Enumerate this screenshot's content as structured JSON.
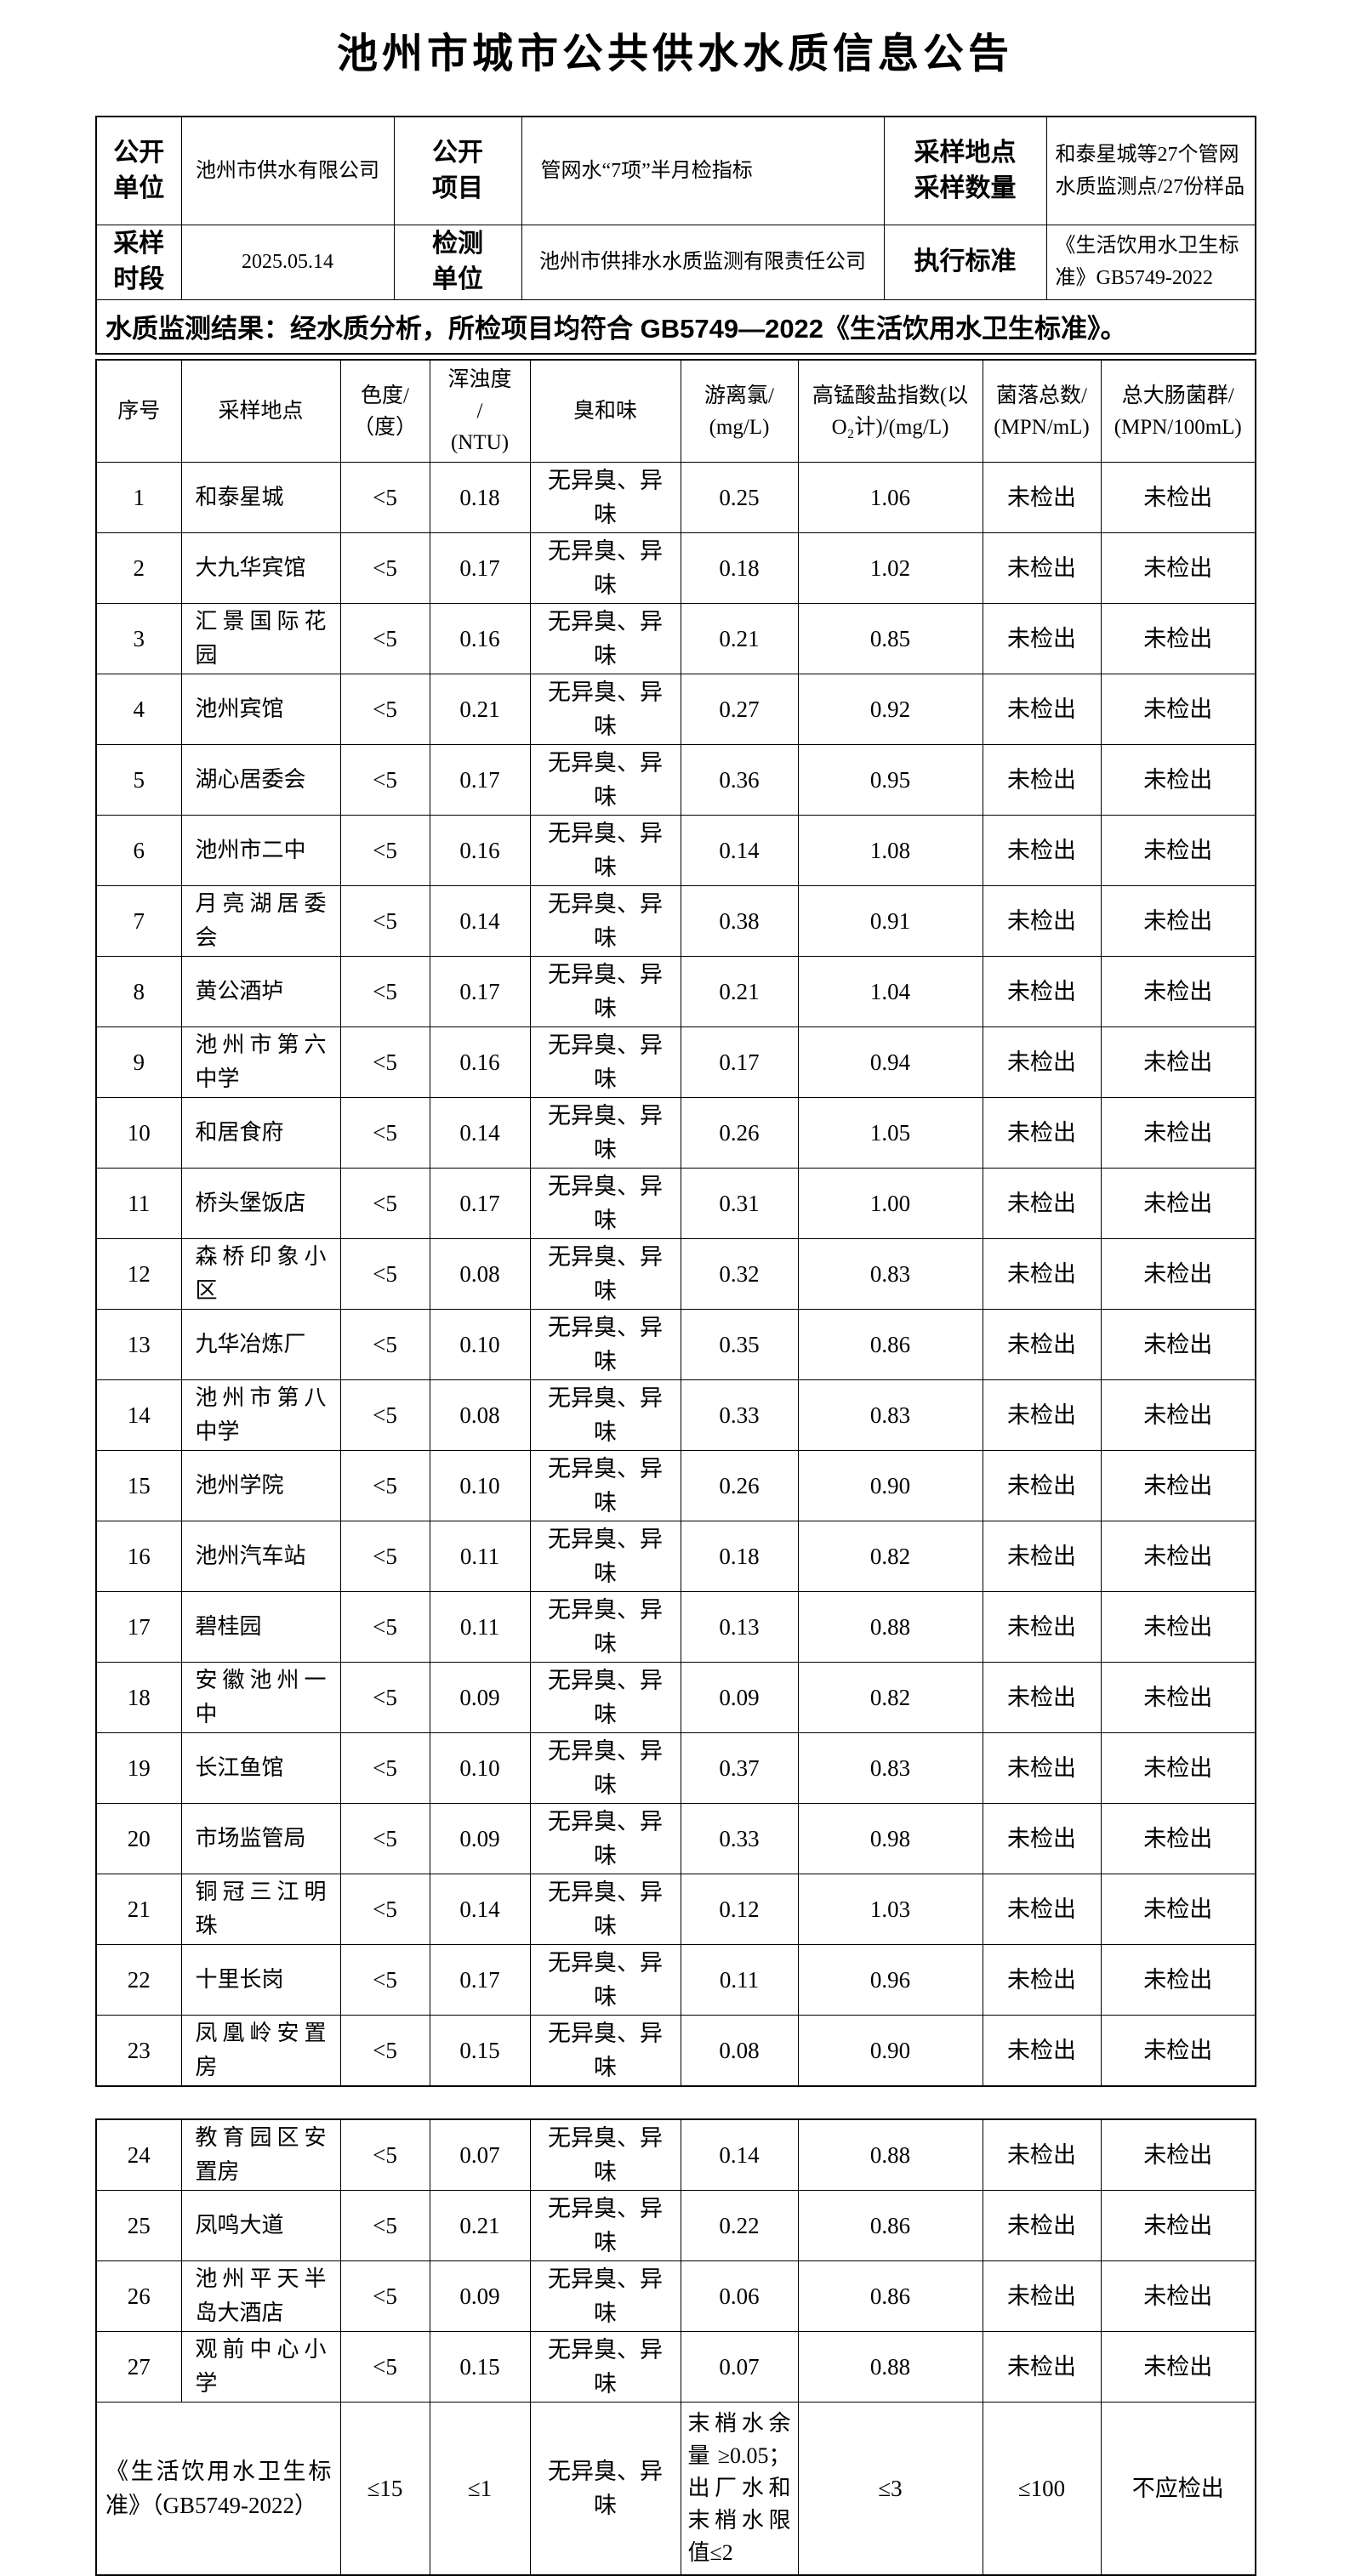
{
  "title": "池州市城市公共供水水质信息公告",
  "info": {
    "open_unit": {
      "label": "公开\n单位",
      "value": "池州市供水有限公司"
    },
    "open_item": {
      "label": "公开\n项目",
      "value": "管网水“7项”半月检指标"
    },
    "sample_site": {
      "label": "采样地点\n采样数量",
      "value": "和泰星城等27个管网水质监测点/27份样品"
    },
    "sample_time": {
      "label": "采样\n时段",
      "value": "2025.05.14"
    },
    "test_unit": {
      "label": "检测\n单位",
      "value": "池州市供排水水质监测有限责任公司"
    },
    "standard": {
      "label": "执行标准",
      "value": "《生活饮用水卫生标准》GB5749-2022"
    },
    "result": "水质监测结果：经水质分析，所检项目均符合 GB5749—2022《生活饮用水卫生标准》。"
  },
  "water_table": {
    "columns": [
      "序号",
      "采样地点",
      "色度/\n（度）",
      "浑浊度\n/\n(NTU)",
      "臭和味",
      "游离氯/\n(mg/L)",
      "高锰酸盐指数(以\nO₂计)/(mg/L)",
      "菌落总数/\n(MPN/mL)",
      "总大肠菌群/\n(MPN/100mL)"
    ],
    "rows": [
      {
        "no": "1",
        "location": "和泰星城",
        "chroma": "<5",
        "turbidity": "0.18",
        "odor": "无异臭、异味",
        "chlorine": "0.25",
        "permanganate": "1.06",
        "colony": "未检出",
        "coliform": "未检出"
      },
      {
        "no": "2",
        "location": "大九华宾馆",
        "chroma": "<5",
        "turbidity": "0.17",
        "odor": "无异臭、异味",
        "chlorine": "0.18",
        "permanganate": "1.02",
        "colony": "未检出",
        "coliform": "未检出"
      },
      {
        "no": "3",
        "location": "汇景国际花园",
        "chroma": "<5",
        "turbidity": "0.16",
        "odor": "无异臭、异味",
        "chlorine": "0.21",
        "permanganate": "0.85",
        "colony": "未检出",
        "coliform": "未检出"
      },
      {
        "no": "4",
        "location": "池州宾馆",
        "chroma": "<5",
        "turbidity": "0.21",
        "odor": "无异臭、异味",
        "chlorine": "0.27",
        "permanganate": "0.92",
        "colony": "未检出",
        "coliform": "未检出"
      },
      {
        "no": "5",
        "location": "湖心居委会",
        "chroma": "<5",
        "turbidity": "0.17",
        "odor": "无异臭、异味",
        "chlorine": "0.36",
        "permanganate": "0.95",
        "colony": "未检出",
        "coliform": "未检出"
      },
      {
        "no": "6",
        "location": "池州市二中",
        "chroma": "<5",
        "turbidity": "0.16",
        "odor": "无异臭、异味",
        "chlorine": "0.14",
        "permanganate": "1.08",
        "colony": "未检出",
        "coliform": "未检出"
      },
      {
        "no": "7",
        "location": "月亮湖居委会",
        "chroma": "<5",
        "turbidity": "0.14",
        "odor": "无异臭、异味",
        "chlorine": "0.38",
        "permanganate": "0.91",
        "colony": "未检出",
        "coliform": "未检出"
      },
      {
        "no": "8",
        "location": "黄公酒垆",
        "chroma": "<5",
        "turbidity": "0.17",
        "odor": "无异臭、异味",
        "chlorine": "0.21",
        "permanganate": "1.04",
        "colony": "未检出",
        "coliform": "未检出"
      },
      {
        "no": "9",
        "location": "池州市第六中学",
        "chroma": "<5",
        "turbidity": "0.16",
        "odor": "无异臭、异味",
        "chlorine": "0.17",
        "permanganate": "0.94",
        "colony": "未检出",
        "coliform": "未检出"
      },
      {
        "no": "10",
        "location": "和居食府",
        "chroma": "<5",
        "turbidity": "0.14",
        "odor": "无异臭、异味",
        "chlorine": "0.26",
        "permanganate": "1.05",
        "colony": "未检出",
        "coliform": "未检出"
      },
      {
        "no": "11",
        "location": "桥头堡饭店",
        "chroma": "<5",
        "turbidity": "0.17",
        "odor": "无异臭、异味",
        "chlorine": "0.31",
        "permanganate": "1.00",
        "colony": "未检出",
        "coliform": "未检出"
      },
      {
        "no": "12",
        "location": "森桥印象小区",
        "chroma": "<5",
        "turbidity": "0.08",
        "odor": "无异臭、异味",
        "chlorine": "0.32",
        "permanganate": "0.83",
        "colony": "未检出",
        "coliform": "未检出"
      },
      {
        "no": "13",
        "location": "九华冶炼厂",
        "chroma": "<5",
        "turbidity": "0.10",
        "odor": "无异臭、异味",
        "chlorine": "0.35",
        "permanganate": "0.86",
        "colony": "未检出",
        "coliform": "未检出"
      },
      {
        "no": "14",
        "location": "池州市第八中学",
        "chroma": "<5",
        "turbidity": "0.08",
        "odor": "无异臭、异味",
        "chlorine": "0.33",
        "permanganate": "0.83",
        "colony": "未检出",
        "coliform": "未检出"
      },
      {
        "no": "15",
        "location": "池州学院",
        "chroma": "<5",
        "turbidity": "0.10",
        "odor": "无异臭、异味",
        "chlorine": "0.26",
        "permanganate": "0.90",
        "colony": "未检出",
        "coliform": "未检出"
      },
      {
        "no": "16",
        "location": "池州汽车站",
        "chroma": "<5",
        "turbidity": "0.11",
        "odor": "无异臭、异味",
        "chlorine": "0.18",
        "permanganate": "0.82",
        "colony": "未检出",
        "coliform": "未检出"
      },
      {
        "no": "17",
        "location": "碧桂园",
        "chroma": "<5",
        "turbidity": "0.11",
        "odor": "无异臭、异味",
        "chlorine": "0.13",
        "permanganate": "0.88",
        "colony": "未检出",
        "coliform": "未检出"
      },
      {
        "no": "18",
        "location": "安徽池州一中",
        "chroma": "<5",
        "turbidity": "0.09",
        "odor": "无异臭、异味",
        "chlorine": "0.09",
        "permanganate": "0.82",
        "colony": "未检出",
        "coliform": "未检出"
      },
      {
        "no": "19",
        "location": "长江鱼馆",
        "chroma": "<5",
        "turbidity": "0.10",
        "odor": "无异臭、异味",
        "chlorine": "0.37",
        "permanganate": "0.83",
        "colony": "未检出",
        "coliform": "未检出"
      },
      {
        "no": "20",
        "location": "市场监管局",
        "chroma": "<5",
        "turbidity": "0.09",
        "odor": "无异臭、异味",
        "chlorine": "0.33",
        "permanganate": "0.98",
        "colony": "未检出",
        "coliform": "未检出"
      },
      {
        "no": "21",
        "location": "铜冠三江明珠",
        "chroma": "<5",
        "turbidity": "0.14",
        "odor": "无异臭、异味",
        "chlorine": "0.12",
        "permanganate": "1.03",
        "colony": "未检出",
        "coliform": "未检出"
      },
      {
        "no": "22",
        "location": "十里长岗",
        "chroma": "<5",
        "turbidity": "0.17",
        "odor": "无异臭、异味",
        "chlorine": "0.11",
        "permanganate": "0.96",
        "colony": "未检出",
        "coliform": "未检出"
      },
      {
        "no": "23",
        "location": "凤凰岭安置房",
        "chroma": "<5",
        "turbidity": "0.15",
        "odor": "无异臭、异味",
        "chlorine": "0.08",
        "permanganate": "0.90",
        "colony": "未检出",
        "coliform": "未检出"
      },
      {
        "no": "24",
        "location": "教育园区安置房",
        "chroma": "<5",
        "turbidity": "0.07",
        "odor": "无异臭、异味",
        "chlorine": "0.14",
        "permanganate": "0.88",
        "colony": "未检出",
        "coliform": "未检出"
      },
      {
        "no": "25",
        "location": "凤鸣大道",
        "chroma": "<5",
        "turbidity": "0.21",
        "odor": "无异臭、异味",
        "chlorine": "0.22",
        "permanganate": "0.86",
        "colony": "未检出",
        "coliform": "未检出"
      },
      {
        "no": "26",
        "location": "池州平天半岛大酒店",
        "chroma": "<5",
        "turbidity": "0.09",
        "odor": "无异臭、异味",
        "chlorine": "0.06",
        "permanganate": "0.86",
        "colony": "未检出",
        "coliform": "未检出"
      },
      {
        "no": "27",
        "location": "观前中心小学",
        "chroma": "<5",
        "turbidity": "0.15",
        "odor": "无异臭、异味",
        "chlorine": "0.07",
        "permanganate": "0.88",
        "colony": "未检出",
        "coliform": "未检出"
      }
    ],
    "split_after_row": 23,
    "standard_row": {
      "label": "《生活饮用水卫生标准》（GB5749-2022）",
      "chroma": "≤15",
      "turbidity": "≤1",
      "odor": "无异臭、异味",
      "chlorine": "末梢水余量≥0.05；出厂水和末梢水限值≤2",
      "permanganate": "≤3",
      "colony": "≤100",
      "coliform": "不应检出"
    }
  }
}
